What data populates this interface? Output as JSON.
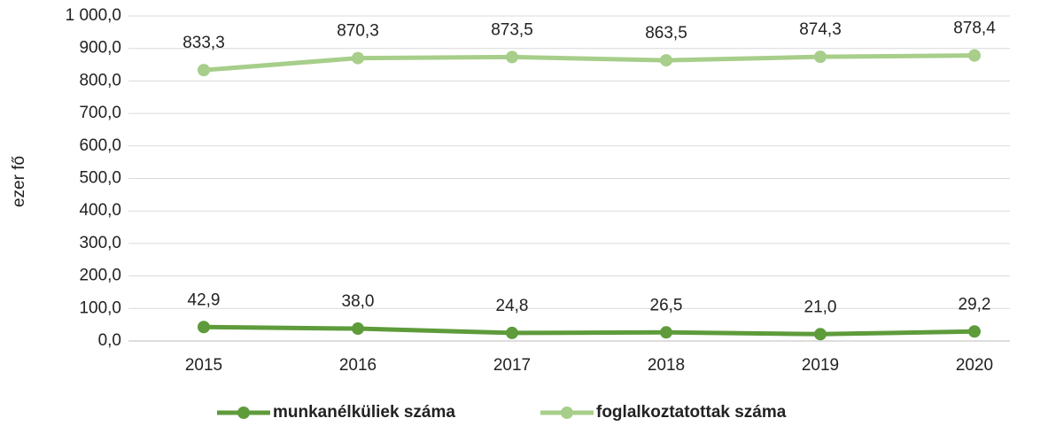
{
  "chart_data": {
    "type": "line",
    "y_label": "ezer fő",
    "categories": [
      "2015",
      "2016",
      "2017",
      "2018",
      "2019",
      "2020"
    ],
    "series": [
      {
        "name": "munkanélküliek száma",
        "color": "#5e9b3b",
        "values": [
          42.9,
          38.0,
          24.8,
          26.5,
          21.0,
          29.2
        ],
        "value_labels": [
          "42,9",
          "38,0",
          "24,8",
          "26,5",
          "21,0",
          "29,2"
        ]
      },
      {
        "name": "foglalkoztatottak száma",
        "color": "#a7ce8a",
        "values": [
          833.3,
          870.3,
          873.5,
          863.5,
          874.3,
          878.4
        ],
        "value_labels": [
          "833,3",
          "870,3",
          "873,5",
          "863,5",
          "874,3",
          "878,4"
        ]
      }
    ],
    "ylim": [
      0,
      1000
    ],
    "yticks": [
      {
        "value": 0,
        "label": "0,0"
      },
      {
        "value": 100,
        "label": "100,0"
      },
      {
        "value": 200,
        "label": "200,0"
      },
      {
        "value": 300,
        "label": "300,0"
      },
      {
        "value": 400,
        "label": "400,0"
      },
      {
        "value": 500,
        "label": "500,0"
      },
      {
        "value": 600,
        "label": "600,0"
      },
      {
        "value": 700,
        "label": "700,0"
      },
      {
        "value": 800,
        "label": "800,0"
      },
      {
        "value": 900,
        "label": "900,0"
      },
      {
        "value": 1000,
        "label": "1 000,0"
      }
    ],
    "grid": true,
    "legend": "bottom"
  }
}
